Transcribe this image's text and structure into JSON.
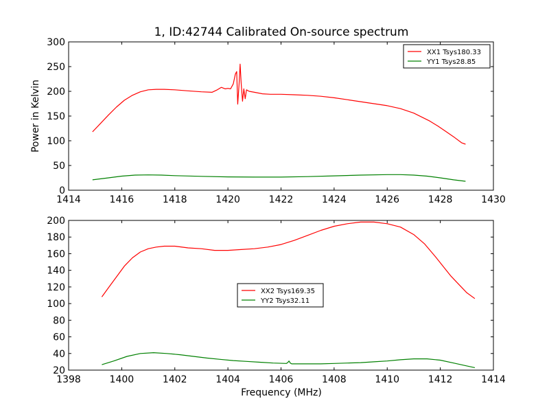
{
  "chart_data": [
    {
      "type": "line",
      "title": "1, ID:42744 Calibrated On-source spectrum",
      "xlabel": "",
      "ylabel": "Power in Kelvin",
      "xlim": [
        1414,
        1430
      ],
      "ylim": [
        0,
        300
      ],
      "xticks": [
        1414,
        1416,
        1418,
        1420,
        1422,
        1424,
        1426,
        1428,
        1430
      ],
      "yticks": [
        0,
        50,
        100,
        150,
        200,
        250,
        300
      ],
      "legend_position": "top-right",
      "series": [
        {
          "name": "XX1 Tsys180.33",
          "color": "#ff0000",
          "x": [
            1414.9,
            1415.2,
            1415.5,
            1415.8,
            1416.1,
            1416.4,
            1416.7,
            1417.0,
            1417.3,
            1417.6,
            1418.0,
            1418.5,
            1419.0,
            1419.4,
            1419.6,
            1419.75,
            1419.9,
            1420.0,
            1420.1,
            1420.2,
            1420.28,
            1420.33,
            1420.37,
            1420.42,
            1420.46,
            1420.5,
            1420.55,
            1420.6,
            1420.65,
            1420.7,
            1420.8,
            1421.0,
            1421.3,
            1421.6,
            1422.0,
            1422.5,
            1423.0,
            1423.5,
            1424.0,
            1424.5,
            1425.0,
            1425.5,
            1426.0,
            1426.5,
            1427.0,
            1427.3,
            1427.6,
            1427.9,
            1428.2,
            1428.5,
            1428.8,
            1428.95
          ],
          "y": [
            118,
            135,
            152,
            168,
            182,
            192,
            199,
            203,
            204,
            204,
            203,
            201,
            199,
            198,
            203,
            208,
            205,
            206,
            205,
            215,
            235,
            240,
            174,
            215,
            255,
            215,
            180,
            205,
            185,
            203,
            200,
            198,
            195,
            194,
            194,
            193,
            192,
            190,
            187,
            183,
            179,
            175,
            171,
            165,
            156,
            148,
            140,
            130,
            119,
            108,
            96,
            93
          ]
        },
        {
          "name": "YY1 Tsys28.85",
          "color": "#008000",
          "x": [
            1414.9,
            1415.5,
            1416.0,
            1416.5,
            1417.0,
            1417.5,
            1418.0,
            1419.0,
            1420.0,
            1421.0,
            1422.0,
            1423.0,
            1424.0,
            1425.0,
            1426.0,
            1426.5,
            1427.0,
            1427.5,
            1428.0,
            1428.5,
            1428.95
          ],
          "y": [
            21,
            25,
            28.5,
            30.5,
            31,
            30.5,
            29.5,
            28,
            27,
            26.5,
            26.5,
            27.5,
            29,
            30.5,
            31.5,
            31.5,
            30.5,
            28.5,
            25,
            21,
            18
          ]
        }
      ]
    },
    {
      "type": "line",
      "title": "",
      "xlabel": "Frequency (MHz)",
      "ylabel": "",
      "xlim": [
        1398,
        1414
      ],
      "ylim": [
        20,
        200
      ],
      "xticks": [
        1398,
        1400,
        1402,
        1404,
        1406,
        1408,
        1410,
        1412,
        1414
      ],
      "yticks": [
        20,
        40,
        60,
        80,
        100,
        120,
        140,
        160,
        180,
        200
      ],
      "legend_position": "center",
      "series": [
        {
          "name": "XX2 Tsys169.35",
          "color": "#ff0000",
          "x": [
            1399.25,
            1399.5,
            1399.8,
            1400.1,
            1400.4,
            1400.7,
            1401.0,
            1401.3,
            1401.6,
            1402.0,
            1402.5,
            1403.0,
            1403.5,
            1404.0,
            1404.5,
            1405.0,
            1405.5,
            1406.0,
            1406.5,
            1407.0,
            1407.5,
            1408.0,
            1408.5,
            1409.0,
            1409.5,
            1410.0,
            1410.5,
            1411.0,
            1411.4,
            1411.8,
            1412.1,
            1412.4,
            1412.7,
            1413.0,
            1413.3
          ],
          "y": [
            108,
            119,
            132,
            145,
            155,
            162,
            166,
            168,
            169,
            169,
            167,
            166,
            164,
            164,
            165,
            166,
            168,
            171,
            176,
            182,
            188,
            193,
            196,
            198,
            198,
            196,
            192,
            183,
            172,
            157,
            145,
            133,
            123,
            113,
            106
          ]
        },
        {
          "name": "YY2 Tsys32.11",
          "color": "#008000",
          "x": [
            1399.25,
            1399.7,
            1400.2,
            1400.7,
            1401.2,
            1401.7,
            1402.2,
            1402.7,
            1403.2,
            1403.7,
            1404.2,
            1404.7,
            1405.2,
            1405.7,
            1406.2,
            1406.25,
            1406.3,
            1406.35,
            1406.4,
            1406.8,
            1407.5,
            1408.0,
            1408.5,
            1409.0,
            1409.5,
            1410.0,
            1410.5,
            1411.0,
            1411.5,
            1412.0,
            1412.5,
            1413.0,
            1413.3
          ],
          "y": [
            26.5,
            31,
            36.5,
            40,
            41,
            40,
            38.5,
            36.5,
            34.5,
            33,
            31.5,
            30.5,
            29.5,
            28.5,
            28,
            29,
            31,
            28.5,
            27.5,
            27.5,
            27.5,
            28,
            28.5,
            29,
            30,
            31,
            32.5,
            33.5,
            33.5,
            32,
            28.5,
            25,
            23
          ]
        }
      ]
    }
  ]
}
